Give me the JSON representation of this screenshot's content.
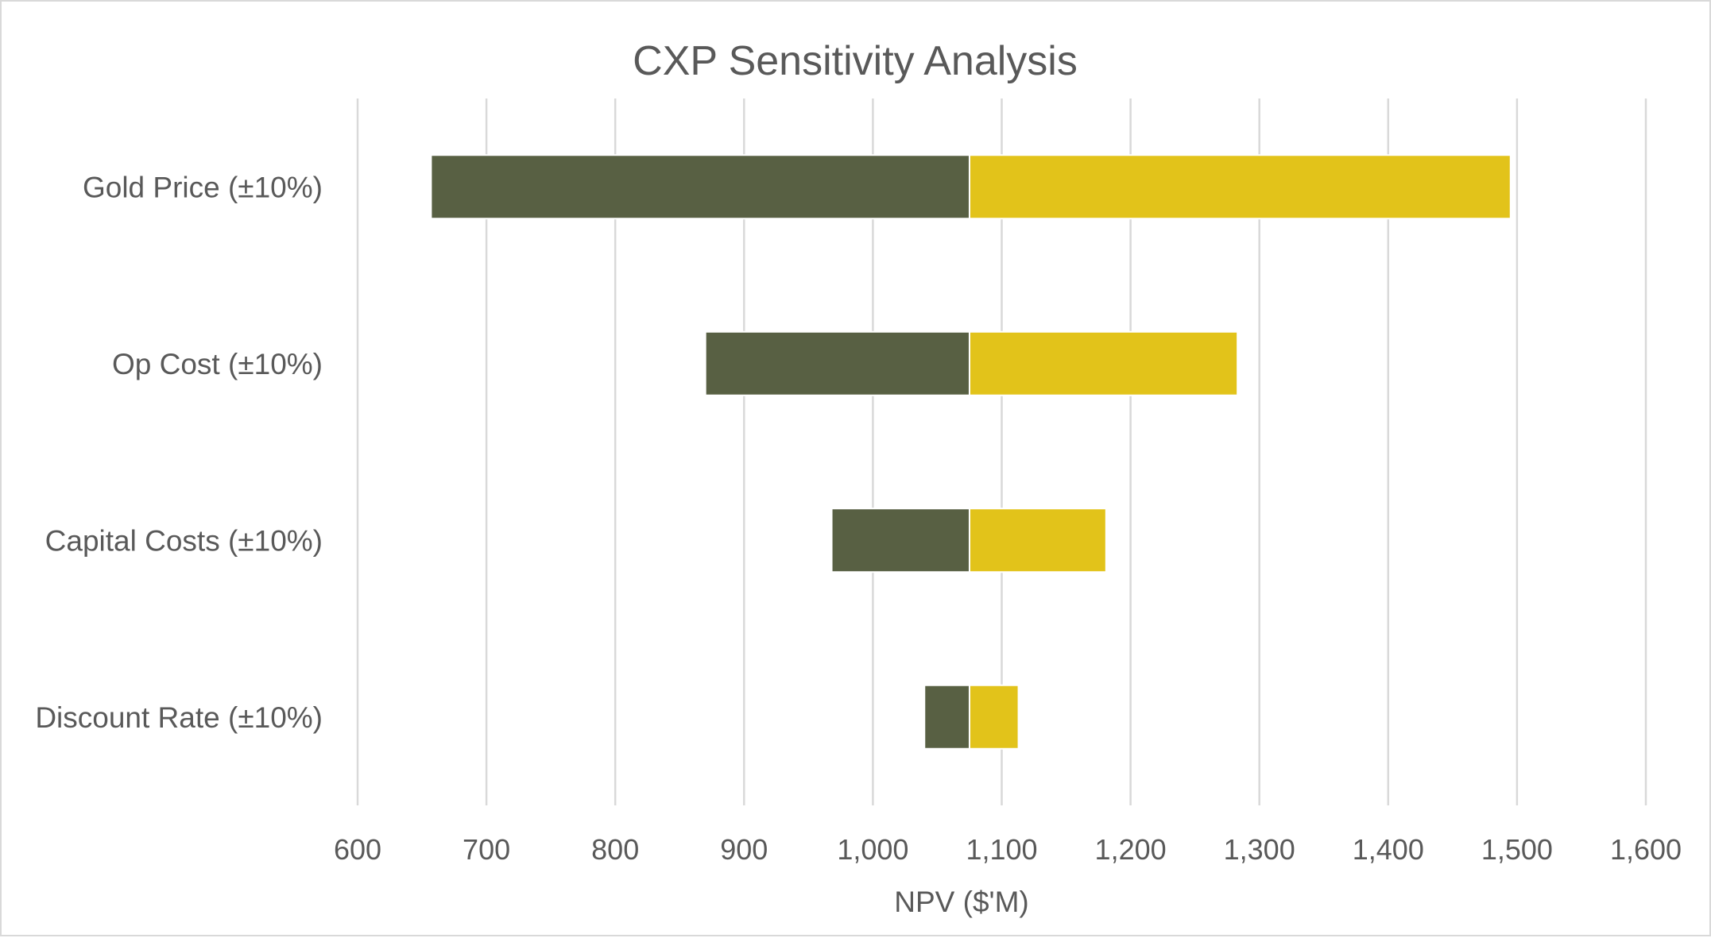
{
  "chart_data": {
    "type": "bar",
    "orientation": "horizontal",
    "subtype": "tornado",
    "title": "CXP Sensitivity Analysis",
    "xlabel": "NPV ($'M)",
    "ylabel": "",
    "xlim": [
      600,
      1600
    ],
    "x_ticks": [
      600,
      700,
      800,
      900,
      1000,
      1100,
      1200,
      1300,
      1400,
      1500,
      1600
    ],
    "x_tick_labels": [
      "600",
      "700",
      "800",
      "900",
      "1,000",
      "1,100",
      "1,200",
      "1,300",
      "1,400",
      "1,500",
      "1,600"
    ],
    "base_value": 1075,
    "categories": [
      "Gold Price (±10%)",
      "Op Cost (±10%)",
      "Capital Costs (±10%)",
      "Discount Rate (±10%)"
    ],
    "series": [
      {
        "values": [
          657,
          870,
          968,
          1040
        ],
        "color": "#586043"
      },
      {
        "values": [
          1495,
          1283,
          1181,
          1113
        ],
        "color": "#e2c31a"
      }
    ],
    "grid": true,
    "legend": "none"
  }
}
